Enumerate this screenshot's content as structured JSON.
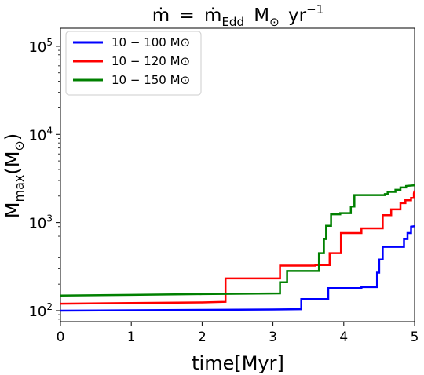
{
  "chart_data": {
    "type": "line",
    "title": "ṁ = ṁ_Edd M_⊙ yr⁻¹",
    "title_parts": {
      "mdot": "ṁ",
      "equals": "=",
      "mdot2": "ṁ",
      "sub": "Edd",
      "unit": "M",
      "sun": "⊙",
      "yr": "yr",
      "exp": "−1"
    },
    "xlabel": "time[Myr]",
    "ylabel": "M_max(M_⊙)",
    "ylabel_parts": {
      "main": "M",
      "sub": "max",
      "open": "(M",
      "sun": "⊙",
      "close": ")"
    },
    "xlim": [
      0,
      5
    ],
    "ylim": [
      75,
      160000
    ],
    "y_scale": "log",
    "grid": false,
    "legend_position": "top-left",
    "x_ticks": [
      0,
      1,
      2,
      3,
      4,
      5
    ],
    "x_tick_labels": [
      "0",
      "1",
      "2",
      "3",
      "4",
      "5"
    ],
    "y_ticks": [
      100,
      1000,
      10000,
      100000
    ],
    "y_tick_labels": [
      {
        "base": "10",
        "exp": "2"
      },
      {
        "base": "10",
        "exp": "3"
      },
      {
        "base": "10",
        "exp": "4"
      },
      {
        "base": "10",
        "exp": "5"
      }
    ],
    "series": [
      {
        "name": "10 − 100 M⊙",
        "color": "#0000ff",
        "x": [
          0,
          1.0,
          2.0,
          3.0,
          3.4,
          3.4,
          3.78,
          3.78,
          4.25,
          4.25,
          4.47,
          4.47,
          4.5,
          4.5,
          4.55,
          4.55,
          4.85,
          4.85,
          4.9,
          4.9,
          4.95,
          4.95,
          5.0
        ],
        "y": [
          100,
          101,
          102,
          103,
          104,
          135,
          135,
          180,
          180,
          185,
          185,
          270,
          270,
          380,
          380,
          530,
          530,
          650,
          650,
          760,
          760,
          900,
          910
        ]
      },
      {
        "name": "10 − 120 M⊙",
        "color": "#ff0000",
        "x": [
          0,
          1.0,
          2.0,
          2.33,
          2.33,
          3.1,
          3.1,
          3.6,
          3.6,
          3.8,
          3.8,
          3.96,
          3.96,
          4.25,
          4.25,
          4.55,
          4.55,
          4.67,
          4.67,
          4.8,
          4.8,
          4.87,
          4.87,
          4.95,
          4.95,
          4.99,
          4.99,
          5.0
        ],
        "y": [
          120,
          122,
          124,
          126,
          232,
          232,
          325,
          325,
          330,
          330,
          450,
          450,
          760,
          760,
          860,
          860,
          1210,
          1210,
          1410,
          1410,
          1660,
          1660,
          1790,
          1790,
          1900,
          1900,
          2150,
          2300
        ]
      },
      {
        "name": "10 − 150 M⊙",
        "color": "#008000",
        "x": [
          0,
          1.0,
          2.0,
          3.1,
          3.1,
          3.2,
          3.2,
          3.65,
          3.65,
          3.72,
          3.72,
          3.75,
          3.75,
          3.82,
          3.82,
          3.95,
          3.95,
          4.1,
          4.1,
          4.15,
          4.15,
          4.58,
          4.58,
          4.62,
          4.62,
          4.73,
          4.73,
          4.8,
          4.8,
          4.88,
          4.88,
          5.0
        ],
        "y": [
          148,
          151,
          154,
          157,
          210,
          210,
          282,
          282,
          450,
          450,
          650,
          650,
          920,
          920,
          1240,
          1240,
          1280,
          1280,
          1520,
          1520,
          2050,
          2050,
          2100,
          2100,
          2230,
          2230,
          2350,
          2350,
          2500,
          2500,
          2600,
          2650
        ]
      }
    ]
  }
}
